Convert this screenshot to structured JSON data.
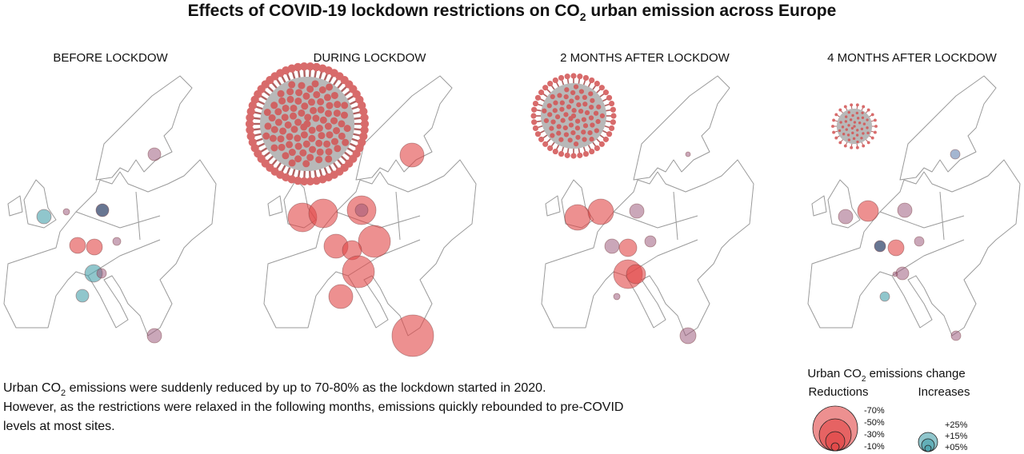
{
  "header": {
    "title_start": "Effects of COVID-19 lockdown restrictions on CO",
    "title_sub": "2",
    "title_end": " urban emission across Europe"
  },
  "panels": [
    {
      "label": "BEFORE LOCKDOW"
    },
    {
      "label": "DURING LOCKDOW"
    },
    {
      "label": "2 MONTHS AFTER LOCKDOW"
    },
    {
      "label": "4 MONTHS AFTER LOCKDOW"
    }
  ],
  "description": {
    "line1_start": "Urban CO",
    "line1_sub": "2",
    "line1_end": " emissions were suddenly reduced by up to 70-80% as the lockdown started in 2020.",
    "line2": "However, as the restrictions were relaxed in the following months, emissions quickly rebounded to pre-COVID",
    "line3": "levels at most sites."
  },
  "legend": {
    "title_start": "Urban CO",
    "title_sub": "2",
    "title_end": " emissions change",
    "reductions": "Reductions",
    "increases": "Increases",
    "reduction_labels": [
      "-70%",
      "-50%",
      "-30%",
      "-10%"
    ],
    "increase_labels": [
      "+25%",
      "+15%",
      "+05%"
    ]
  }
}
